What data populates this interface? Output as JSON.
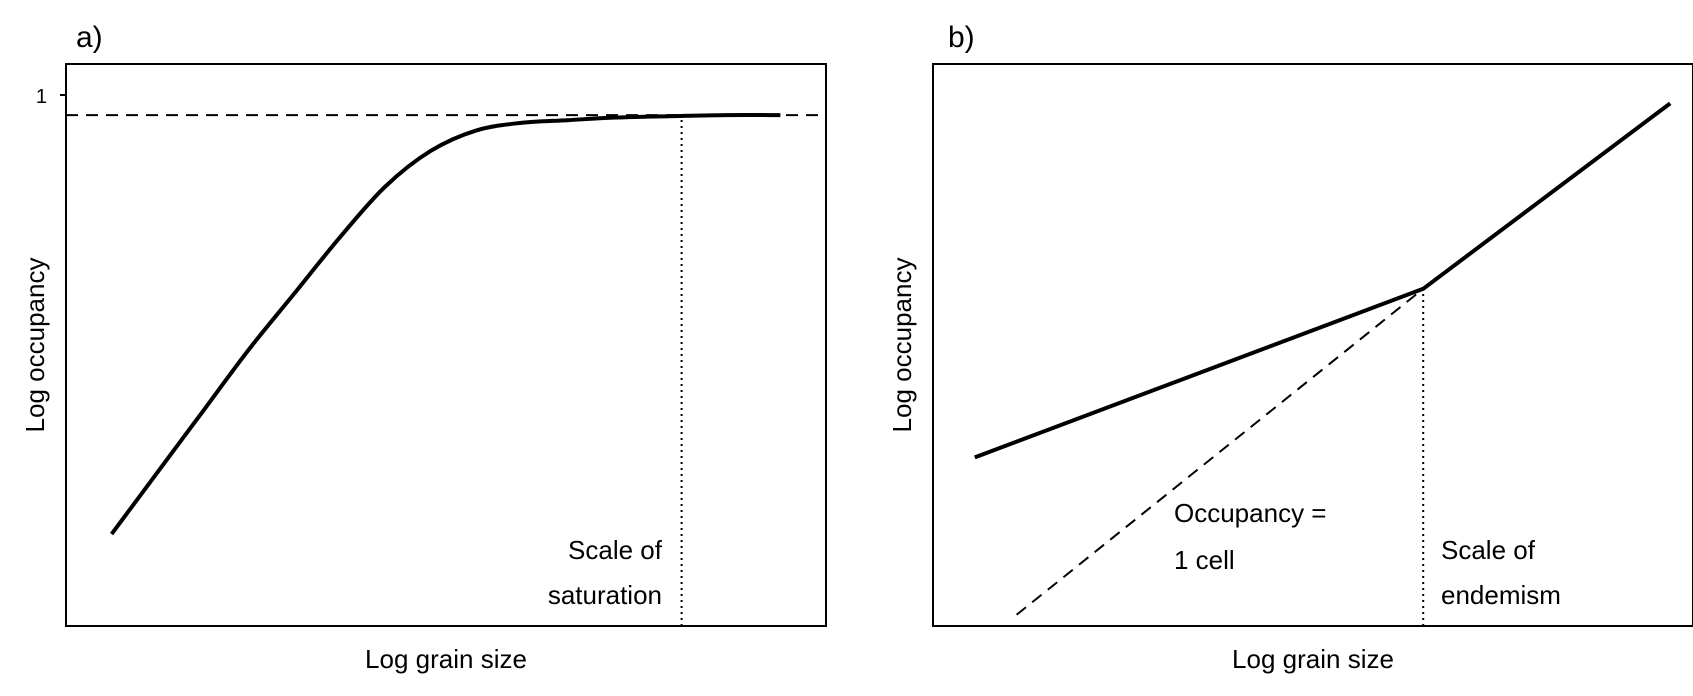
{
  "chart_data": [
    {
      "type": "line",
      "panel_label": "a)",
      "xlabel": "Log grain size",
      "ylabel": "Log occupancy",
      "y_ticks": [
        "1"
      ],
      "ylim": [
        0,
        1.1
      ],
      "xlim": [
        0,
        1
      ],
      "grid": false,
      "series": [
        {
          "style": "solid",
          "x": [
            0.06,
            0.12,
            0.18,
            0.24,
            0.3,
            0.36,
            0.42,
            0.48,
            0.54,
            0.6,
            0.66,
            0.72,
            0.8,
            0.87,
            0.94
          ],
          "y": [
            0.18,
            0.3,
            0.42,
            0.54,
            0.65,
            0.76,
            0.86,
            0.93,
            0.97,
            0.985,
            0.99,
            0.995,
            0.998,
            1.0,
            1.0
          ]
        }
      ],
      "reference_lines": [
        {
          "orientation": "horizontal",
          "style": "dashed",
          "y": 1
        },
        {
          "orientation": "vertical",
          "style": "dotted",
          "x": 0.81
        }
      ],
      "annotations": [
        {
          "lines": [
            "Scale of",
            "saturation"
          ]
        }
      ]
    },
    {
      "type": "line",
      "panel_label": "b)",
      "xlabel": "Log grain size",
      "ylabel": "Log occupancy",
      "y_ticks": [],
      "xlim": [
        0,
        1
      ],
      "ylim": [
        0,
        1
      ],
      "grid": false,
      "series": [
        {
          "style": "solid",
          "x": [
            0.055,
            0.645,
            0.97
          ],
          "y": [
            0.3,
            0.6,
            0.93
          ]
        },
        {
          "style": "dashed",
          "x": [
            0.11,
            0.645
          ],
          "y": [
            0.02,
            0.6
          ]
        }
      ],
      "reference_lines": [
        {
          "orientation": "vertical",
          "style": "dotted",
          "x": 0.645
        }
      ],
      "annotations": [
        {
          "lines": [
            "Occupancy =",
            "1 cell"
          ]
        },
        {
          "lines": [
            "Scale of",
            "endemism"
          ]
        }
      ]
    }
  ]
}
